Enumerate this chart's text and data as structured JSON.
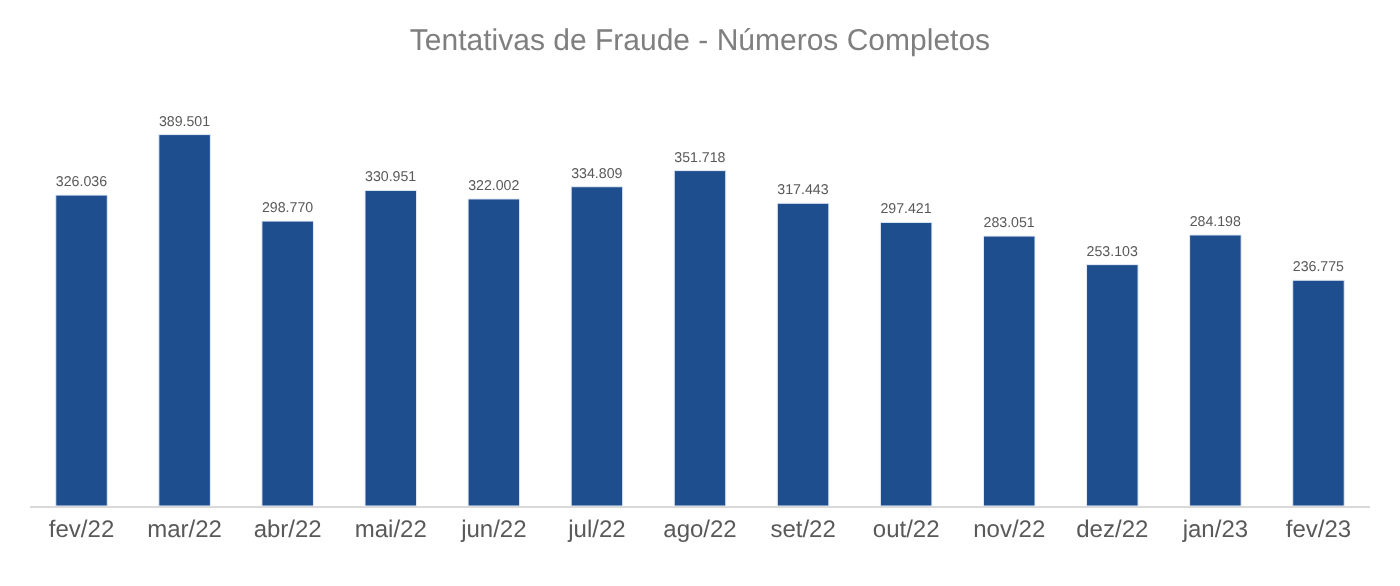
{
  "chart_data": {
    "type": "bar",
    "title": "Tentativas de Fraude - Números Completos",
    "categories": [
      "fev/22",
      "mar/22",
      "abr/22",
      "mai/22",
      "jun/22",
      "jul/22",
      "ago/22",
      "set/22",
      "out/22",
      "nov/22",
      "dez/22",
      "jan/23",
      "fev/23"
    ],
    "values": [
      326036,
      389501,
      298770,
      330951,
      322002,
      334809,
      351718,
      317443,
      297421,
      283051,
      253103,
      284198,
      236775
    ],
    "value_labels": [
      "326.036",
      "389.501",
      "298.770",
      "330.951",
      "322.002",
      "334.809",
      "351.718",
      "317.443",
      "297.421",
      "283.051",
      "253.103",
      "284.198",
      "236.775"
    ],
    "color": "#1f4e8f"
  }
}
